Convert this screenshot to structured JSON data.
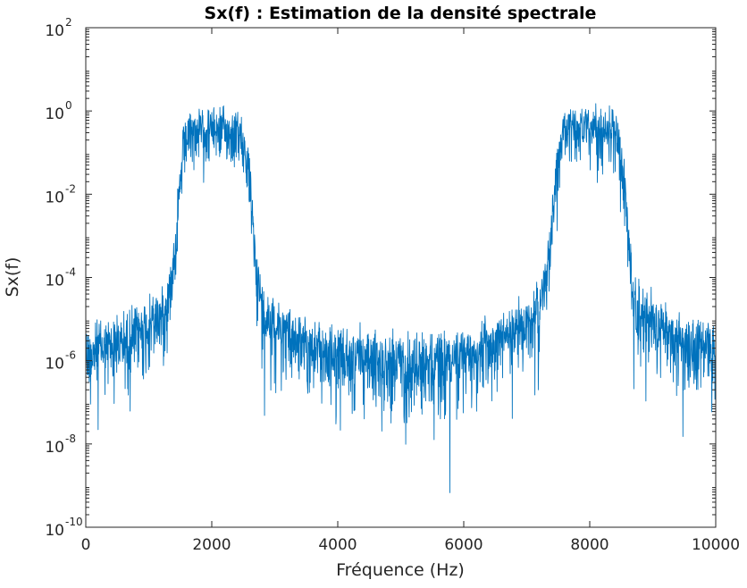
{
  "chart_data": {
    "type": "line",
    "title": "Sx(f) : Estimation de la densité spectrale",
    "xlabel": "Fréquence (Hz)",
    "ylabel": "Sx(f)",
    "xlim": [
      0,
      10000
    ],
    "ylim": [
      1e-10,
      100
    ],
    "yscale": "log",
    "grid": false,
    "box": true,
    "x_ticks": [
      0,
      2000,
      4000,
      6000,
      8000,
      10000
    ],
    "x_tick_labels": [
      "0",
      "2000",
      "4000",
      "6000",
      "8000",
      "10000"
    ],
    "y_ticks": [
      1e-10,
      1e-08,
      1e-06,
      0.0001,
      0.01,
      1,
      100
    ],
    "y_tick_labels": [
      {
        "base": "10",
        "exp": "-10"
      },
      {
        "base": "10",
        "exp": "-8"
      },
      {
        "base": "10",
        "exp": "-6"
      },
      {
        "base": "10",
        "exp": "-4"
      },
      {
        "base": "10",
        "exp": "-2"
      },
      {
        "base": "10",
        "exp": "0"
      },
      {
        "base": "10",
        "exp": "2"
      }
    ],
    "series": [
      {
        "color": "#0072BD",
        "description": "noisy spectral density estimate; symmetric about 5000 Hz; sampled from smooth envelope values (log10 of Sx, with noise spread) listed below",
        "x": [
          0,
          200,
          400,
          600,
          800,
          1000,
          1150,
          1280,
          1350,
          1450,
          1550,
          1650,
          1800,
          2000,
          2200,
          2400,
          2500,
          2600,
          2700,
          2800,
          3000,
          3200,
          3400,
          3600,
          3800,
          4000,
          4200,
          4400,
          4600,
          4800,
          5000,
          5200,
          5400,
          5600,
          5800,
          6000,
          6200,
          6400,
          6600,
          6800,
          7000,
          7200,
          7300,
          7400,
          7500,
          7600,
          7800,
          8000,
          8200,
          8350,
          8450,
          8550,
          8650,
          8720,
          8850,
          9000,
          9200,
          9400,
          9600,
          9800,
          10000
        ],
        "log10_center": [
          -5.7,
          -5.6,
          -5.5,
          -5.4,
          -5.2,
          -5.0,
          -4.8,
          -4.6,
          -4.0,
          -2.6,
          -0.8,
          -0.4,
          -0.35,
          -0.35,
          -0.35,
          -0.4,
          -0.6,
          -1.6,
          -3.6,
          -4.6,
          -5.0,
          -5.2,
          -5.4,
          -5.6,
          -5.7,
          -5.8,
          -5.85,
          -5.9,
          -5.9,
          -5.9,
          -5.9,
          -5.9,
          -5.9,
          -5.9,
          -5.85,
          -5.8,
          -5.7,
          -5.6,
          -5.4,
          -5.2,
          -5.0,
          -4.6,
          -4.0,
          -2.6,
          -0.8,
          -0.4,
          -0.35,
          -0.35,
          -0.35,
          -0.4,
          -0.6,
          -1.6,
          -3.6,
          -4.6,
          -4.8,
          -5.0,
          -5.2,
          -5.4,
          -5.5,
          -5.6,
          -5.7
        ],
        "log10_spread": [
          1.3,
          1.3,
          1.3,
          1.3,
          1.3,
          1.3,
          1.2,
          1.2,
          1.0,
          1.1,
          1.0,
          0.9,
          0.9,
          0.9,
          0.9,
          0.9,
          1.0,
          1.1,
          1.1,
          1.2,
          1.2,
          1.2,
          1.2,
          1.2,
          1.3,
          1.3,
          1.3,
          1.3,
          1.3,
          1.3,
          1.3,
          1.3,
          1.3,
          1.3,
          1.3,
          1.3,
          1.3,
          1.2,
          1.2,
          1.2,
          1.2,
          1.2,
          1.0,
          1.1,
          1.0,
          0.9,
          0.9,
          0.9,
          0.9,
          0.9,
          1.0,
          1.1,
          1.1,
          1.2,
          1.2,
          1.3,
          1.3,
          1.3,
          1.3,
          1.3,
          1.3
        ]
      }
    ]
  }
}
